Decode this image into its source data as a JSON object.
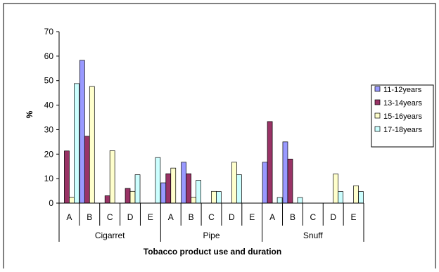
{
  "chart_data": {
    "type": "bar",
    "xlabel": "Tobacco product use and duration",
    "ylabel": "%",
    "ylim": [
      0,
      70
    ],
    "yticks": [
      0,
      10,
      20,
      30,
      40,
      50,
      60,
      70
    ],
    "grid": false,
    "legend_position": "right",
    "groups": [
      {
        "label": "Cigarret",
        "categories": [
          "A",
          "B",
          "C",
          "D",
          "E"
        ]
      },
      {
        "label": "Pipe",
        "categories": [
          "A",
          "B",
          "C",
          "D",
          "E"
        ]
      },
      {
        "label": "Snuff",
        "categories": [
          "A",
          "B",
          "C",
          "D",
          "E"
        ]
      }
    ],
    "series": [
      {
        "name": "11-12years",
        "color": "#9999ff",
        "values": [
          0,
          58.3,
          0,
          0,
          0,
          8.3,
          16.7,
          0,
          0,
          0,
          16.7,
          25,
          0,
          0,
          0
        ]
      },
      {
        "name": "13-14years",
        "color": "#993366",
        "values": [
          21.3,
          27.3,
          3,
          6,
          0,
          12,
          12,
          0,
          0,
          0,
          33.3,
          18,
          0,
          0,
          0
        ]
      },
      {
        "name": "15-16years",
        "color": "#ffffcc",
        "values": [
          2.4,
          47.6,
          21.4,
          4.8,
          0,
          14.3,
          2.4,
          4.8,
          16.7,
          0,
          0,
          0,
          0,
          11.9,
          7.1
        ]
      },
      {
        "name": "17-18years",
        "color": "#ccffff",
        "values": [
          48.8,
          0,
          0,
          11.6,
          18.6,
          0,
          9.3,
          4.7,
          11.6,
          0,
          2.3,
          2.3,
          0,
          4.7,
          4.7
        ]
      }
    ]
  }
}
